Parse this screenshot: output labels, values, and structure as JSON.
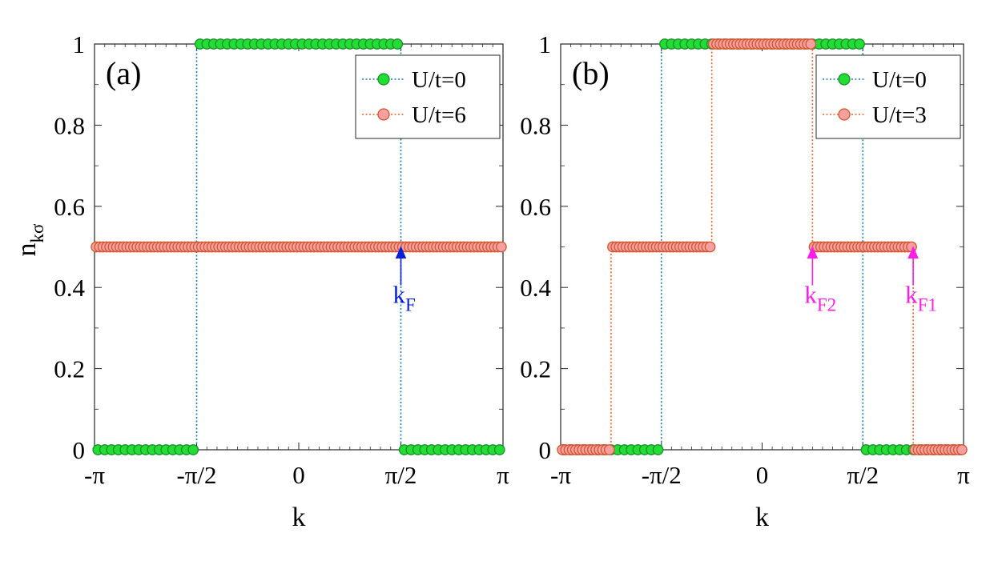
{
  "ylabel_base": "n",
  "ylabel_sub": "kσ",
  "chart_data": [
    {
      "type": "line",
      "panel": "(a)",
      "xlabel": "k",
      "ylabel": "n_kσ",
      "xlim": [
        -3.14159,
        3.14159
      ],
      "ylim": [
        0,
        1
      ],
      "x_ticks": [
        "-π",
        "-π/2",
        "0",
        "π/2",
        "π"
      ],
      "y_ticks": [
        "0",
        "0.2",
        "0.4",
        "0.6",
        "0.8",
        "1"
      ],
      "grid": false,
      "legend_position": "top-right",
      "series": [
        {
          "name": "U/t=0",
          "line": "#1f77b4",
          "marker_fill": "#22dd33",
          "marker_edge": "#1a8f2a",
          "n_points": 60,
          "segments": [
            {
              "from": -3.14159,
              "to": -1.5708,
              "value": 0
            },
            {
              "from": -1.5708,
              "to": 1.5708,
              "value": 1
            },
            {
              "from": 1.5708,
              "to": 3.14159,
              "value": 0
            }
          ]
        },
        {
          "name": "U/t=6",
          "line": "#e8622c",
          "marker_fill": "#f4a0a0",
          "marker_edge": "#d2552c",
          "n_points": 120,
          "segments": [
            {
              "from": -3.14159,
              "to": 3.14159,
              "value": 0.5
            }
          ]
        }
      ],
      "annotations": [
        {
          "text": "k",
          "sub": "F",
          "x": 1.5708,
          "y": 0.5,
          "color": "#0a1ed8"
        }
      ]
    },
    {
      "type": "line",
      "panel": "(b)",
      "xlabel": "k",
      "ylabel": "n_kσ",
      "xlim": [
        -3.14159,
        3.14159
      ],
      "ylim": [
        0,
        1
      ],
      "x_ticks": [
        "-π",
        "-π/2",
        "0",
        "π/2",
        "π"
      ],
      "y_ticks": [
        "0",
        "0.2",
        "0.4",
        "0.6",
        "0.8",
        "1"
      ],
      "grid": false,
      "legend_position": "top-right",
      "series": [
        {
          "name": "U/t=0",
          "line": "#1f77b4",
          "marker_fill": "#22dd33",
          "marker_edge": "#1a8f2a",
          "n_points": 60,
          "segments": [
            {
              "from": -3.14159,
              "to": -1.5708,
              "value": 0
            },
            {
              "from": -1.5708,
              "to": 1.5708,
              "value": 1
            },
            {
              "from": 1.5708,
              "to": 3.14159,
              "value": 0
            }
          ]
        },
        {
          "name": "U/t=3",
          "line": "#e8622c",
          "marker_fill": "#f4a0a0",
          "marker_edge": "#d2552c",
          "n_points": 120,
          "segments": [
            {
              "from": -3.14159,
              "to": -2.356,
              "value": 0
            },
            {
              "from": -2.356,
              "to": -0.785,
              "value": 0.5
            },
            {
              "from": -0.785,
              "to": 0.785,
              "value": 1
            },
            {
              "from": 0.785,
              "to": 2.356,
              "value": 0.5
            },
            {
              "from": 2.356,
              "to": 3.14159,
              "value": 0
            }
          ]
        }
      ],
      "annotations": [
        {
          "text": "k",
          "sub": "F2",
          "x": 0.785,
          "y": 0.5,
          "color": "#ff1ee6"
        },
        {
          "text": "k",
          "sub": "F1",
          "x": 2.356,
          "y": 0.5,
          "color": "#ff1ee6"
        }
      ]
    }
  ]
}
